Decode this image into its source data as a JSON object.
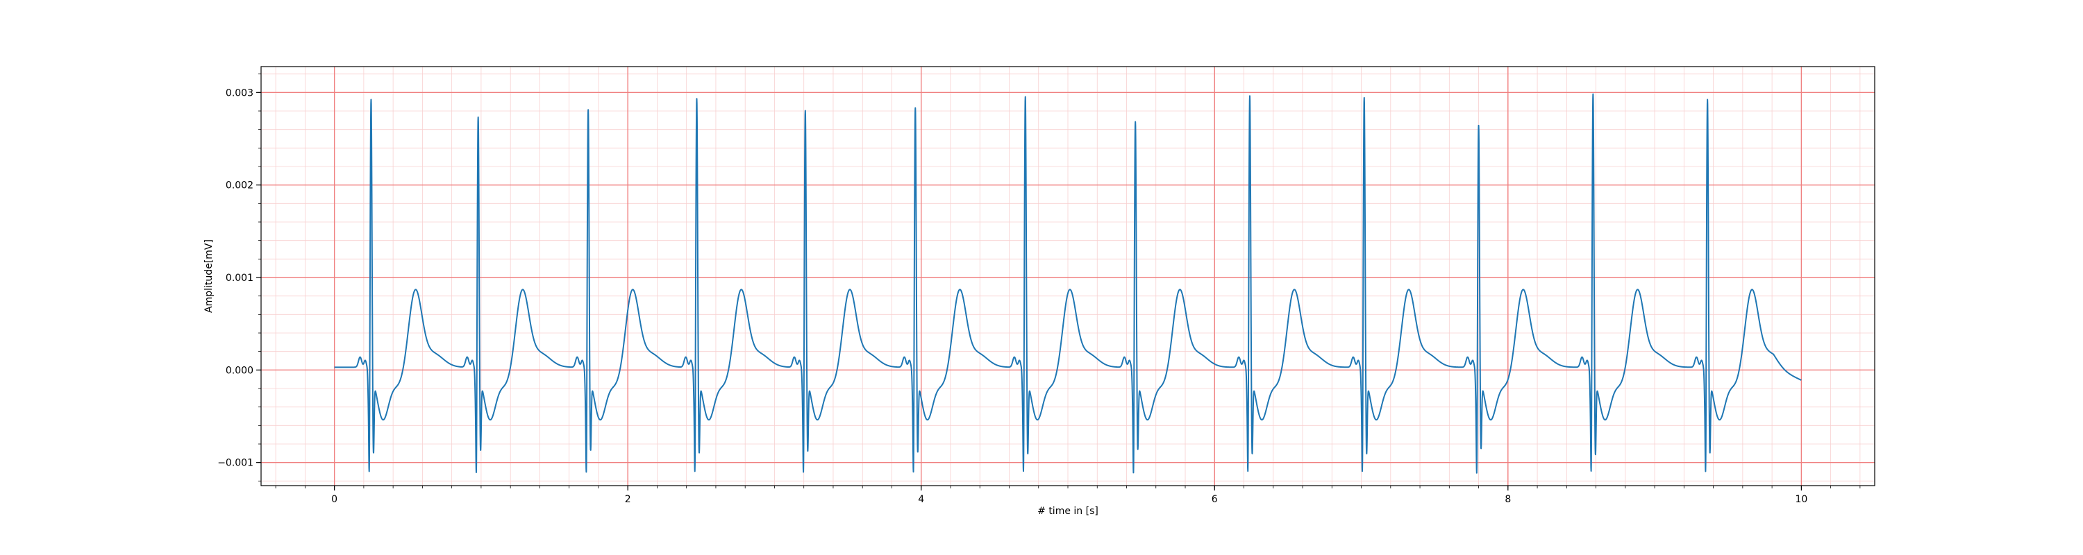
{
  "chart_data": {
    "type": "line",
    "xlabel": "# time in [s]",
    "ylabel": "Amplitude[mV]",
    "xlim": [
      -0.5,
      10.5
    ],
    "ylim": [
      -0.00125,
      0.00328
    ],
    "x_ticks": [
      0,
      2,
      4,
      6,
      8,
      10
    ],
    "x_tick_labels": [
      "0",
      "2",
      "4",
      "6",
      "8",
      "10"
    ],
    "y_ticks": [
      -0.001,
      0.0,
      0.001,
      0.002,
      0.003
    ],
    "y_tick_labels": [
      "−0.001",
      "0.000",
      "0.001",
      "0.002",
      "0.003"
    ],
    "grid": {
      "major": true,
      "minor": true,
      "major_color": "#f08080",
      "minor_color": "#f8d0d0"
    },
    "series": [
      {
        "color": "#1f77b4",
        "baseline": 3e-05,
        "beats": [
          {
            "r_time": 0.25,
            "r_peak": 0.003,
            "s_trough": -0.00101
          },
          {
            "r_time": 0.98,
            "r_peak": 0.00281,
            "s_trough": -0.00098
          },
          {
            "r_time": 1.73,
            "r_peak": 0.00289,
            "s_trough": -0.00098
          },
          {
            "r_time": 2.47,
            "r_peak": 0.00301,
            "s_trough": -0.00101
          },
          {
            "r_time": 3.21,
            "r_peak": 0.00288,
            "s_trough": -0.00099
          },
          {
            "r_time": 3.96,
            "r_peak": 0.00291,
            "s_trough": -0.001
          },
          {
            "r_time": 4.71,
            "r_peak": 0.00303,
            "s_trough": -0.00102
          },
          {
            "r_time": 5.46,
            "r_peak": 0.00276,
            "s_trough": -0.00097
          },
          {
            "r_time": 6.24,
            "r_peak": 0.00304,
            "s_trough": -0.00102
          },
          {
            "r_time": 7.02,
            "r_peak": 0.00302,
            "s_trough": -0.00102
          },
          {
            "r_time": 7.8,
            "r_peak": 0.00272,
            "s_trough": -0.00096
          },
          {
            "r_time": 8.58,
            "r_peak": 0.00306,
            "s_trough": -0.00103
          },
          {
            "r_time": 9.36,
            "r_peak": 0.003,
            "s_trough": -0.00101
          }
        ],
        "x_end": 10.0,
        "y_end": -0.00011
      }
    ]
  }
}
